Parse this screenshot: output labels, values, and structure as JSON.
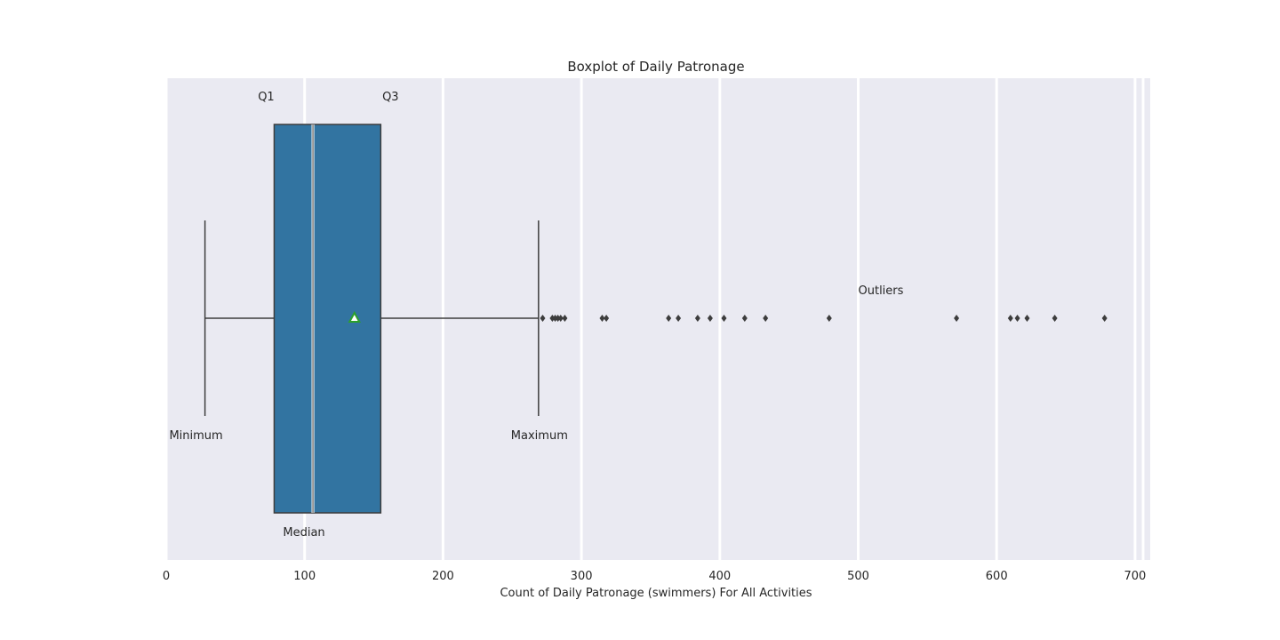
{
  "chart_data": {
    "type": "box",
    "orientation": "horizontal",
    "title": "Boxplot of Daily Patronage",
    "xlabel": "Count of Daily Patronage (swimmers) For All Activities",
    "ylabel": "",
    "xlim": [
      0,
      710
    ],
    "xticks": [
      0,
      100,
      200,
      300,
      400,
      500,
      600,
      700
    ],
    "xtick_labels": [
      "0",
      "100",
      "200",
      "300",
      "400",
      "500",
      "600",
      "700"
    ],
    "grid": true,
    "box": {
      "minimum": 28,
      "q1": 78,
      "median": 106,
      "mean": 136,
      "q3": 155,
      "maximum": 269
    },
    "outliers": [
      272,
      279,
      281,
      283,
      285,
      288,
      315,
      318,
      363,
      370,
      384,
      393,
      403,
      418,
      433,
      479,
      571,
      610,
      615,
      622,
      642,
      678
    ],
    "annotations": [
      {
        "text": "Q1",
        "x": 78,
        "level": "top"
      },
      {
        "text": "Q3",
        "x": 155,
        "level": "top"
      },
      {
        "text": "Minimum",
        "x": 28,
        "level": "below-whisker"
      },
      {
        "text": "Maximum",
        "x": 269,
        "level": "below-whisker"
      },
      {
        "text": "Median",
        "x": 106,
        "level": "bottom"
      },
      {
        "text": "Outliers",
        "x": 500,
        "level": "above-outliers"
      }
    ],
    "colors": {
      "background": "#eaeaf2",
      "box": "#3274a1",
      "grid": "#ffffff",
      "line": "#3d3d3d",
      "mean_marker": "#2ca02c"
    }
  }
}
